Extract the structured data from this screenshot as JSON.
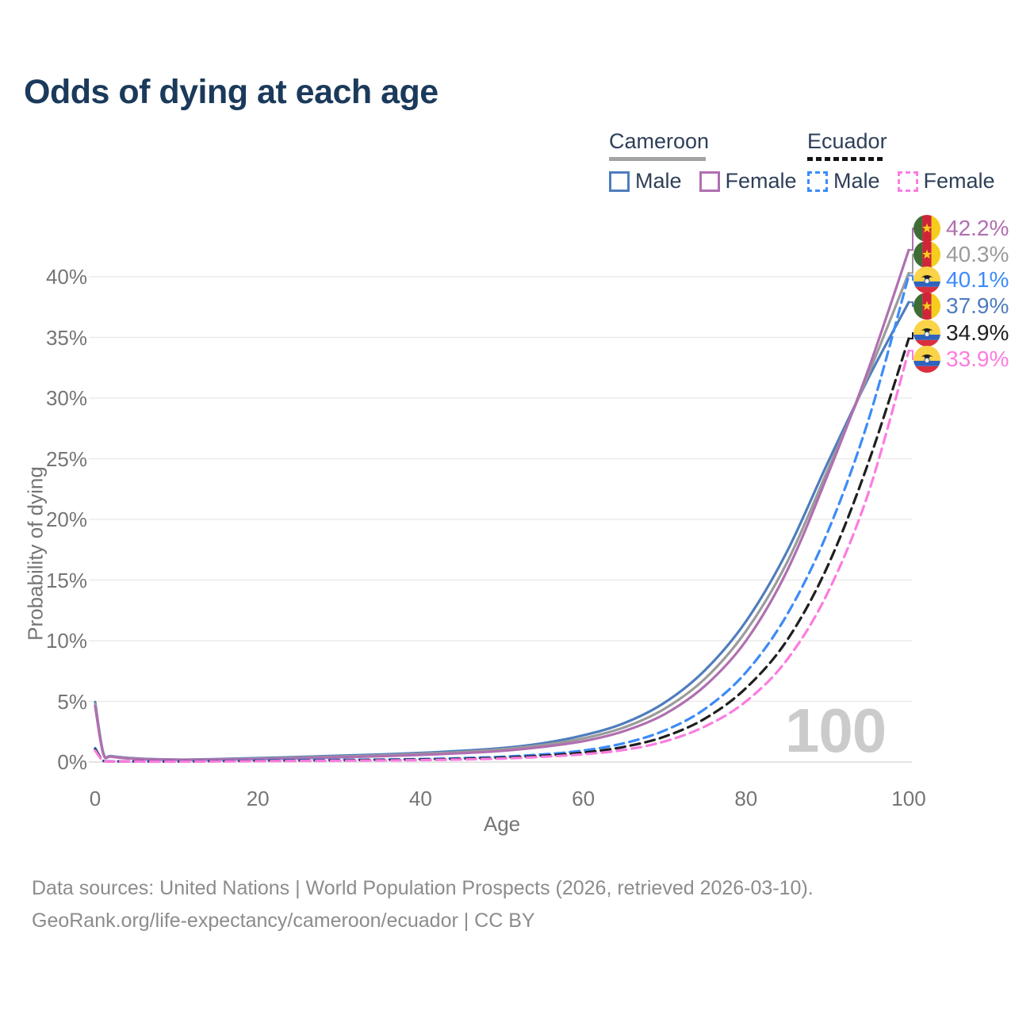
{
  "title": "Odds of dying at each age",
  "watermark": "100",
  "legend": {
    "cameroon": {
      "country": "Cameroon",
      "male_label": "Male",
      "female_label": "Female",
      "line_color": "#a3a3a3",
      "male_color": "#4e7dbd",
      "female_color": "#b06fb0"
    },
    "ecuador": {
      "country": "Ecuador",
      "male_label": "Male",
      "female_label": "Female",
      "line_color": "#141414",
      "male_color": "#3d8bf8",
      "female_color": "#fb7ce0"
    }
  },
  "axes": {
    "y_label": "Probability of dying",
    "x_label": "Age",
    "y_tick_values": [
      0,
      5,
      10,
      15,
      20,
      25,
      30,
      35,
      40
    ],
    "y_tick_labels": [
      "0%",
      "5%",
      "10%",
      "15%",
      "20%",
      "25%",
      "30%",
      "35%",
      "40%"
    ],
    "x_tick_values": [
      0,
      20,
      40,
      60,
      80,
      100
    ],
    "x_tick_labels": [
      "0",
      "20",
      "40",
      "60",
      "80",
      "100"
    ]
  },
  "chart_data": {
    "type": "line",
    "title": "Odds of dying at each age",
    "xlabel": "Age",
    "ylabel": "Probability of dying",
    "xlim": [
      0,
      100
    ],
    "ylim": [
      0,
      45
    ],
    "grid": true,
    "legend_position": "top-right",
    "unit": "percent",
    "x": [
      0,
      1,
      2,
      5,
      10,
      15,
      20,
      25,
      30,
      35,
      40,
      45,
      50,
      55,
      60,
      65,
      70,
      75,
      80,
      85,
      90,
      95,
      100
    ],
    "series": [
      {
        "name": "Cameroon Male",
        "country": "Cameroon",
        "sex": "Male",
        "color": "#4e7dbd",
        "dashed": false,
        "values": [
          4.95,
          0.75,
          0.5,
          0.3,
          0.2,
          0.25,
          0.33,
          0.42,
          0.52,
          0.62,
          0.75,
          0.92,
          1.15,
          1.55,
          2.2,
          3.2,
          4.9,
          7.6,
          11.6,
          17.3,
          24.6,
          31.6,
          37.9
        ]
      },
      {
        "name": "Cameroon Both sexes",
        "country": "Cameroon",
        "sex": "Both",
        "color": "#9b9b9b",
        "dashed": false,
        "values": [
          4.8,
          0.7,
          0.47,
          0.28,
          0.19,
          0.22,
          0.28,
          0.36,
          0.45,
          0.55,
          0.67,
          0.82,
          1.05,
          1.4,
          1.95,
          2.85,
          4.4,
          6.9,
          10.8,
          16.4,
          24.0,
          31.9,
          40.3
        ]
      },
      {
        "name": "Cameroon Female",
        "country": "Cameroon",
        "sex": "Female",
        "color": "#b06fb0",
        "dashed": false,
        "values": [
          4.6,
          0.66,
          0.44,
          0.26,
          0.18,
          0.2,
          0.24,
          0.31,
          0.39,
          0.48,
          0.59,
          0.73,
          0.92,
          1.25,
          1.72,
          2.55,
          3.95,
          6.3,
          10.0,
          15.7,
          23.6,
          32.3,
          42.2
        ]
      },
      {
        "name": "Ecuador Male",
        "country": "Ecuador",
        "sex": "Male",
        "color": "#3d8bf8",
        "dashed": true,
        "values": [
          1.15,
          0.1,
          0.07,
          0.05,
          0.05,
          0.09,
          0.14,
          0.17,
          0.19,
          0.21,
          0.25,
          0.32,
          0.44,
          0.63,
          0.95,
          1.55,
          2.6,
          4.4,
          7.4,
          12.1,
          18.9,
          28.1,
          40.1
        ]
      },
      {
        "name": "Ecuador Both sexes",
        "country": "Ecuador",
        "sex": "Both",
        "color": "#1f1f1f",
        "dashed": true,
        "values": [
          1.05,
          0.09,
          0.06,
          0.05,
          0.04,
          0.07,
          0.1,
          0.12,
          0.14,
          0.17,
          0.2,
          0.26,
          0.36,
          0.52,
          0.78,
          1.25,
          2.1,
          3.6,
          6.1,
          10.0,
          16.1,
          24.6,
          34.9
        ]
      },
      {
        "name": "Ecuador Female",
        "country": "Ecuador",
        "sex": "Female",
        "color": "#fb7ce0",
        "dashed": true,
        "values": [
          0.95,
          0.08,
          0.06,
          0.04,
          0.03,
          0.05,
          0.07,
          0.09,
          0.11,
          0.13,
          0.16,
          0.21,
          0.29,
          0.43,
          0.64,
          1.0,
          1.7,
          2.95,
          5.0,
          8.4,
          13.9,
          22.1,
          33.9
        ]
      }
    ]
  },
  "end_labels": [
    {
      "value": "42.2%",
      "country": "cameroon",
      "color": "#b06fb0",
      "series": "Cameroon Female"
    },
    {
      "value": "40.3%",
      "country": "cameroon",
      "color": "#9b9b9b",
      "series": "Cameroon Both sexes"
    },
    {
      "value": "40.1%",
      "country": "ecuador",
      "color": "#3d8bf8",
      "series": "Ecuador Male"
    },
    {
      "value": "37.9%",
      "country": "cameroon",
      "color": "#4e7dbd",
      "series": "Cameroon Male"
    },
    {
      "value": "34.9%",
      "country": "ecuador",
      "color": "#1f1f1f",
      "series": "Ecuador Both sexes"
    },
    {
      "value": "33.9%",
      "country": "ecuador",
      "color": "#fb7ce0",
      "series": "Ecuador Female"
    }
  ],
  "footer": {
    "line1": "Data sources: United Nations | World Population Prospects (2026, retrieved 2026-03-10).",
    "line2": "GeoRank.org/life-expectancy/cameroon/ecuador | CC BY"
  }
}
